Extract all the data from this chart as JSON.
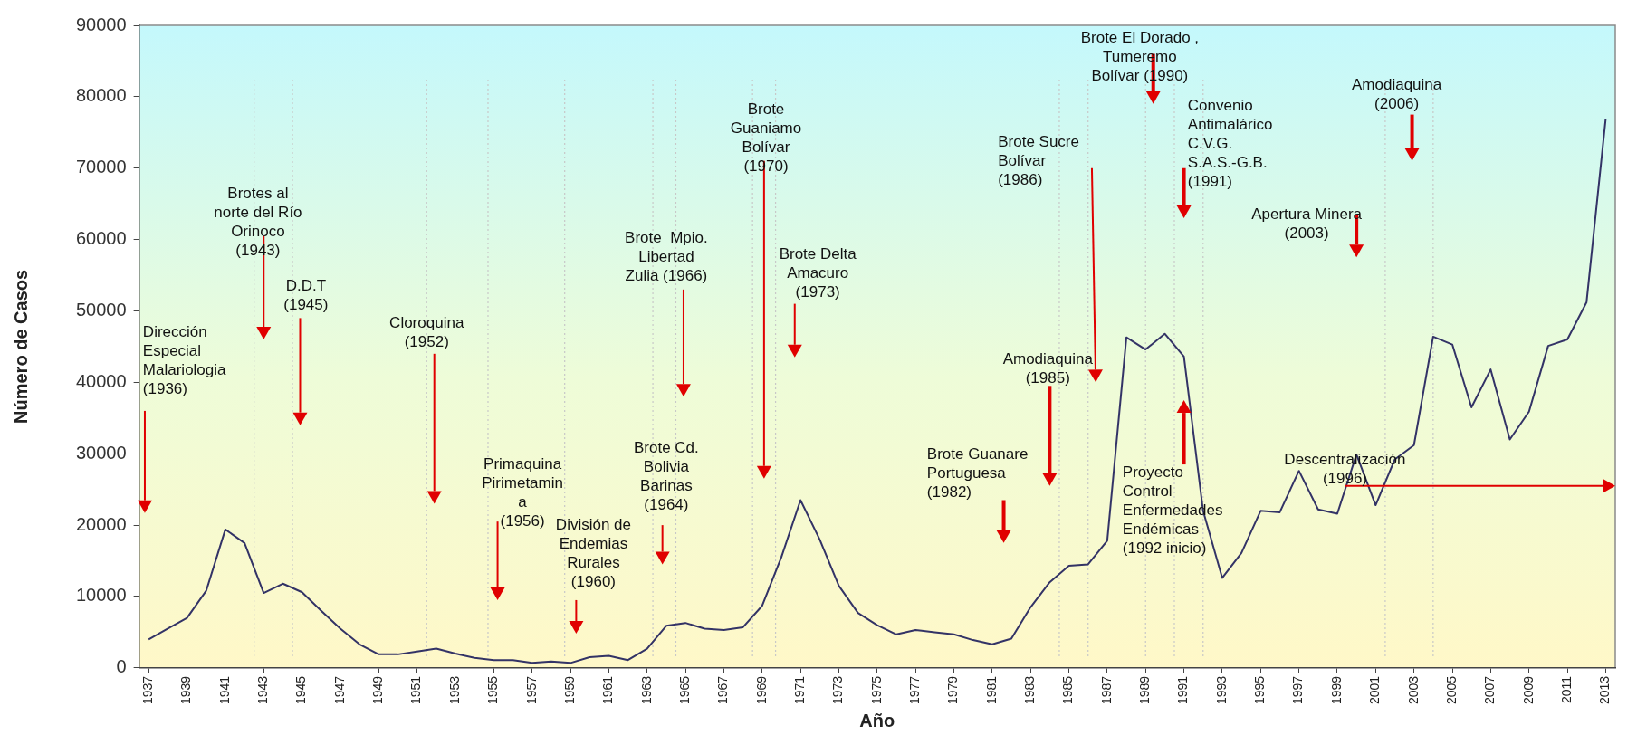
{
  "chart_data": {
    "type": "line",
    "xlabel": "Año",
    "ylabel": "Número de Casos",
    "x": [
      1937,
      1938,
      1939,
      1940,
      1941,
      1942,
      1943,
      1944,
      1945,
      1946,
      1947,
      1948,
      1949,
      1950,
      1951,
      1952,
      1953,
      1954,
      1955,
      1956,
      1957,
      1958,
      1959,
      1960,
      1961,
      1962,
      1963,
      1964,
      1965,
      1966,
      1967,
      1968,
      1969,
      1970,
      1971,
      1972,
      1973,
      1974,
      1975,
      1976,
      1977,
      1978,
      1979,
      1980,
      1981,
      1982,
      1983,
      1984,
      1985,
      1986,
      1987,
      1988,
      1989,
      1990,
      1991,
      1992,
      1993,
      1994,
      1995,
      1996,
      1997,
      1998,
      1999,
      2000,
      2001,
      2002,
      2003,
      2004,
      2005,
      2006,
      2007,
      2008,
      2009,
      2010,
      2011,
      2012,
      2013
    ],
    "series": [
      {
        "color": "#333366",
        "values": [
          4000,
          5500,
          7000,
          10800,
          19400,
          17500,
          10500,
          11800,
          10600,
          8000,
          5500,
          3300,
          1900,
          1900,
          2300,
          2700,
          2000,
          1400,
          1100,
          1100,
          700,
          900,
          700,
          1500,
          1700,
          1100,
          2700,
          5900,
          6300,
          5500,
          5300,
          5700,
          8700,
          15500,
          23500,
          18000,
          11500,
          7700,
          6000,
          4700,
          5300,
          5000,
          4700,
          3900,
          3300,
          4100,
          8500,
          12000,
          14300,
          14500,
          17800,
          46300,
          44600,
          46800,
          43600,
          22000,
          12600,
          16100,
          22000,
          21800,
          27600,
          22200,
          21600,
          29900,
          22800,
          29200,
          31200,
          46400,
          45300,
          36500,
          41800,
          32000,
          35900,
          45100,
          46000,
          51200,
          76900
        ]
      }
    ],
    "xlim": [
      1936.5,
      2013.5
    ],
    "xticks": [
      1937,
      1939,
      1941,
      1943,
      1945,
      1947,
      1949,
      1951,
      1953,
      1955,
      1957,
      1959,
      1961,
      1963,
      1965,
      1967,
      1969,
      1971,
      1973,
      1975,
      1977,
      1979,
      1981,
      1983,
      1985,
      1987,
      1989,
      1991,
      1993,
      1995,
      1997,
      1999,
      2001,
      2003,
      2005,
      2007,
      2009,
      2011,
      2013
    ],
    "ylim": [
      0,
      90000
    ],
    "yticks": [
      0,
      10000,
      20000,
      30000,
      40000,
      50000,
      60000,
      70000,
      80000,
      90000
    ],
    "grid": false,
    "legend": false,
    "ref_lines": [
      {
        "axis": "x",
        "value": 1942.5,
        "color": "#c8c8c8",
        "line_style": "dotted"
      },
      {
        "axis": "x",
        "value": 1944.5,
        "color": "#c8c8c8",
        "line_style": "dotted"
      },
      {
        "axis": "x",
        "value": 1951.5,
        "color": "#c8c8c8",
        "line_style": "dotted"
      },
      {
        "axis": "x",
        "value": 1954.7,
        "color": "#c8c8c8",
        "line_style": "dotted"
      },
      {
        "axis": "x",
        "value": 1958.7,
        "color": "#c8c8c8",
        "line_style": "dotted"
      },
      {
        "axis": "x",
        "value": 1963.3,
        "color": "#c8c8c8",
        "line_style": "dotted"
      },
      {
        "axis": "x",
        "value": 1964.5,
        "color": "#c8c8c8",
        "line_style": "dotted"
      },
      {
        "axis": "x",
        "value": 1968.5,
        "color": "#c8c8c8",
        "line_style": "dotted"
      },
      {
        "axis": "x",
        "value": 1969.7,
        "color": "#c8c8c8",
        "line_style": "dotted"
      },
      {
        "axis": "x",
        "value": 1984.5,
        "color": "#c8c8c8",
        "line_style": "dotted"
      },
      {
        "axis": "x",
        "value": 1986,
        "color": "#c8c8c8",
        "line_style": "dotted"
      },
      {
        "axis": "x",
        "value": 1989,
        "color": "#c8c8c8",
        "line_style": "dotted"
      },
      {
        "axis": "x",
        "value": 1990.5,
        "color": "#c8c8c8",
        "line_style": "dotted"
      },
      {
        "axis": "x",
        "value": 1992,
        "color": "#c8c8c8",
        "line_style": "dotted"
      },
      {
        "axis": "x",
        "value": 2001.5,
        "color": "#c8c8c8",
        "line_style": "dotted"
      },
      {
        "axis": "x",
        "value": 2004,
        "color": "#c8c8c8",
        "line_style": "dotted"
      }
    ],
    "annotations": [
      "Dirección\nEspecial\nMalariologia\n(1936)",
      "Brotes al\nnorte del Río\nOrinoco\n(1943)",
      "D.D.T\n(1945)",
      "Cloroquina\n(1952)",
      "Primaquina\nPirimetamin\na\n(1956)",
      "División de\nEndemias\nRurales\n(1960)",
      "Brote Cd.\nBolivia\nBarinas\n(1964)",
      "Brote  Mpio.\nLibertad\nZulia (1966)",
      "Brote\nGuaniamo\nBolívar\n(1970)",
      "Brote Delta\nAmacuro\n(1973)",
      "Brote Guanare\nPortuguesa\n(1982)",
      "Amodiaquina\n(1985)",
      "Brote Sucre\nBolívar\n(1986)",
      "Brote El Dorado ,\nTumeremo\nBolívar (1990)",
      "Convenio\nAntimalárico\nC.V.G.\nS.A.S.-G.B.\n(1991)",
      "Apertura Minera\n(2003)",
      "Amodiaquina\n(2006)",
      "Proyecto\nControl\nEnfermedades\nEndémicas\n(1992 inicio)",
      "Descentralización\n(1996)"
    ]
  }
}
